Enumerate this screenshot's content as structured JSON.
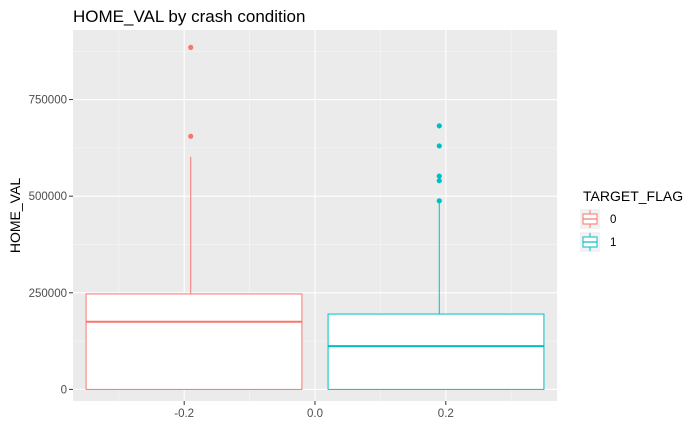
{
  "chart_data": {
    "type": "boxplot",
    "title": "HOME_VAL by crash condition",
    "xlabel": "",
    "ylabel": "HOME_VAL",
    "xlim": [
      -0.37,
      0.37
    ],
    "ylim": [
      -30000,
      930000
    ],
    "x_ticks": [
      {
        "value": -0.2,
        "label": "-0.2"
      },
      {
        "value": 0.0,
        "label": "0.0"
      },
      {
        "value": 0.2,
        "label": "0.2"
      }
    ],
    "y_ticks": [
      {
        "value": 0,
        "label": "0"
      },
      {
        "value": 250000,
        "label": "250000"
      },
      {
        "value": 500000,
        "label": "500000"
      },
      {
        "value": 750000,
        "label": "750000"
      }
    ],
    "grid": true,
    "background": "#ebebeb",
    "legend": {
      "title": "TARGET_FLAG",
      "placement": "right",
      "entries": [
        {
          "label": "0",
          "color": "#f8766d"
        },
        {
          "label": "1",
          "color": "#00bfc4"
        }
      ]
    },
    "series": [
      {
        "name": "0",
        "color": "#f8766d",
        "x_range": [
          -0.35,
          -0.02
        ],
        "whisker_x": -0.19,
        "whisker_low": 0,
        "q1": 0,
        "median": 175000,
        "q3": 247000,
        "whisker_high": 602000,
        "outliers": [
          655000,
          885000
        ]
      },
      {
        "name": "1",
        "color": "#00bfc4",
        "x_range": [
          0.02,
          0.35
        ],
        "whisker_x": 0.19,
        "whisker_low": 0,
        "q1": 0,
        "median": 112000,
        "q3": 195000,
        "whisker_high": 485000,
        "outliers": [
          488000,
          540000,
          552000,
          630000,
          682000
        ]
      }
    ]
  }
}
